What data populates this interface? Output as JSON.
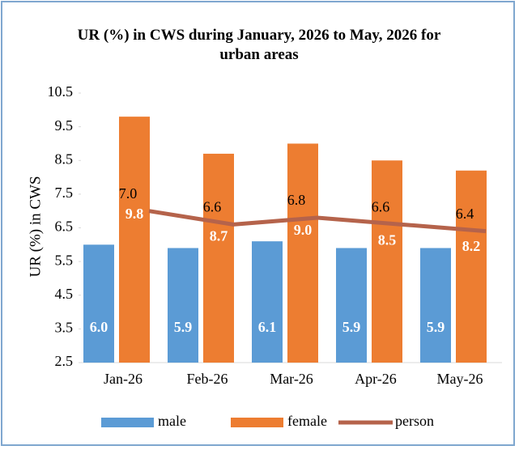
{
  "chart_data": {
    "type": "bar_line",
    "title": "UR (%) in CWS during January, 2026 to May, 2026 for urban areas",
    "y_label": "UR (%) in CWS",
    "categories": [
      "Jan-26",
      "Feb-26",
      "Mar-26",
      "Apr-26",
      "May-26"
    ],
    "series": [
      {
        "name": "male",
        "color": "#5b9bd5",
        "kind": "bar",
        "values": [
          6.0,
          5.9,
          6.1,
          5.9,
          5.9
        ],
        "value_labels": [
          "6.0",
          "5.9",
          "6.1",
          "5.9",
          "5.9"
        ]
      },
      {
        "name": "female",
        "color": "#ed7d31",
        "kind": "bar",
        "values": [
          9.8,
          8.7,
          9.0,
          8.5,
          8.2
        ],
        "value_labels": [
          "9.8",
          "8.7",
          "9.0",
          "8.5",
          "8.2"
        ]
      },
      {
        "name": "person",
        "color": "#b5634b",
        "kind": "line",
        "values": [
          7.0,
          6.6,
          6.8,
          6.6,
          6.4
        ],
        "value_labels": [
          "7.0",
          "6.6",
          "6.8",
          "6.6",
          "6.4"
        ]
      }
    ],
    "ylim": [
      2.5,
      10.5
    ],
    "yticks": [
      2.5,
      3.5,
      4.5,
      5.5,
      6.5,
      7.5,
      8.5,
      9.5,
      10.5
    ],
    "legend": "bottom"
  }
}
